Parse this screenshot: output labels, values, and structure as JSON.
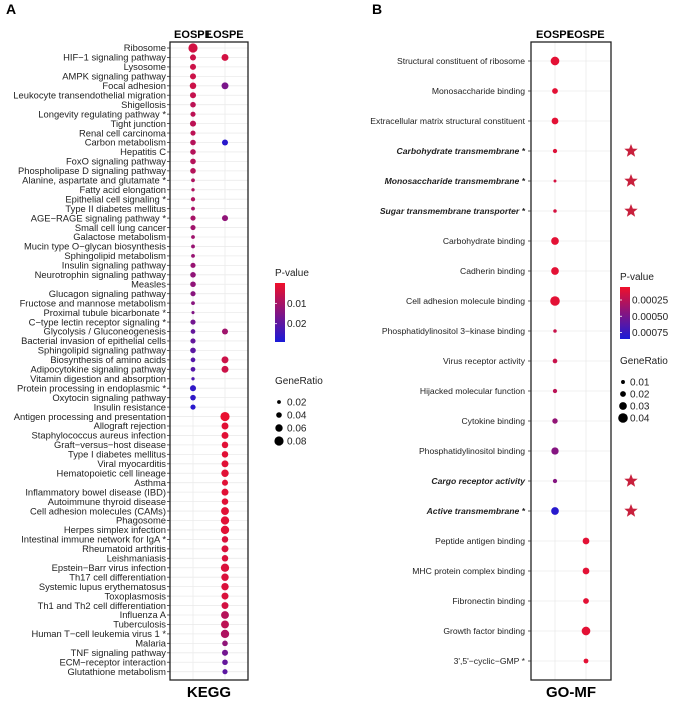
{
  "panels": [
    {
      "letter": "A",
      "title": "KEGG"
    },
    {
      "letter": "B",
      "title": "GO-MF"
    }
  ],
  "chart_data": [
    {
      "type": "scatter",
      "title": "KEGG",
      "panel": "A",
      "columns": [
        "EOSPE",
        "LOSPE"
      ],
      "color_legend": {
        "title": "P-value",
        "ticks": [
          "0.01",
          "0.02"
        ],
        "tick_values": [
          0.01,
          0.02
        ],
        "range": [
          0.0,
          0.029
        ],
        "low_color": "#f0102a",
        "high_color": "#1a1ad8"
      },
      "size_legend": {
        "title": "GeneRatio",
        "ticks": [
          "0.02",
          "0.04",
          "0.06",
          "0.08"
        ],
        "tick_values": [
          0.02,
          0.04,
          0.06,
          0.08
        ]
      },
      "grid": true,
      "legend": "right",
      "terms": [
        {
          "term": "Ribosome",
          "EOSPE": [
            0.004,
            0.08
          ],
          "LOSPE": null
        },
        {
          "term": "HIF−1 signaling pathway",
          "EOSPE": [
            0.005,
            0.045
          ],
          "LOSPE": [
            0.004,
            0.055
          ]
        },
        {
          "term": "Lysosome",
          "EOSPE": [
            0.005,
            0.045
          ],
          "LOSPE": null
        },
        {
          "term": "AMPK signaling pathway",
          "EOSPE": [
            0.005,
            0.045
          ],
          "LOSPE": null
        },
        {
          "term": "Focal adhesion",
          "EOSPE": [
            0.005,
            0.05
          ],
          "LOSPE": [
            0.016,
            0.055
          ]
        },
        {
          "term": "Leukocyte transendothelial migration",
          "EOSPE": [
            0.006,
            0.045
          ],
          "LOSPE": null
        },
        {
          "term": "Shigellosis",
          "EOSPE": [
            0.007,
            0.04
          ],
          "LOSPE": null
        },
        {
          "term": "Longevity regulating pathway *",
          "EOSPE": [
            0.007,
            0.035
          ],
          "LOSPE": null
        },
        {
          "term": "Tight junction",
          "EOSPE": [
            0.007,
            0.045
          ],
          "LOSPE": null
        },
        {
          "term": "Renal cell carcinoma",
          "EOSPE": [
            0.007,
            0.035
          ],
          "LOSPE": null
        },
        {
          "term": "Carbon metabolism",
          "EOSPE": [
            0.008,
            0.04
          ],
          "LOSPE": [
            0.027,
            0.045
          ]
        },
        {
          "term": "Hepatitis C",
          "EOSPE": [
            0.008,
            0.04
          ],
          "LOSPE": null
        },
        {
          "term": "FoxO signaling pathway",
          "EOSPE": [
            0.008,
            0.04
          ],
          "LOSPE": null
        },
        {
          "term": "Phospholipase D signaling pathway",
          "EOSPE": [
            0.008,
            0.04
          ],
          "LOSPE": null
        },
        {
          "term": "Alanine, aspartate and glutamate *",
          "EOSPE": [
            0.009,
            0.02
          ],
          "LOSPE": null
        },
        {
          "term": "Fatty acid elongation",
          "EOSPE": [
            0.009,
            0.015
          ],
          "LOSPE": null
        },
        {
          "term": "Epithelial cell signaling *",
          "EOSPE": [
            0.009,
            0.025
          ],
          "LOSPE": null
        },
        {
          "term": "Type II diabetes mellitus",
          "EOSPE": [
            0.01,
            0.02
          ],
          "LOSPE": null
        },
        {
          "term": "AGE−RAGE signaling pathway *",
          "EOSPE": [
            0.01,
            0.035
          ],
          "LOSPE": [
            0.013,
            0.045
          ]
        },
        {
          "term": "Small cell lung cancer",
          "EOSPE": [
            0.011,
            0.035
          ],
          "LOSPE": null
        },
        {
          "term": "Galactose metabolism",
          "EOSPE": [
            0.011,
            0.02
          ],
          "LOSPE": null
        },
        {
          "term": "Mucin type O−glycan biosynthesis",
          "EOSPE": [
            0.012,
            0.02
          ],
          "LOSPE": null
        },
        {
          "term": "Sphingolipid metabolism",
          "EOSPE": [
            0.012,
            0.02
          ],
          "LOSPE": null
        },
        {
          "term": "Insulin signaling pathway",
          "EOSPE": [
            0.012,
            0.035
          ],
          "LOSPE": null
        },
        {
          "term": "Neurotrophin signaling pathway",
          "EOSPE": [
            0.013,
            0.04
          ],
          "LOSPE": null
        },
        {
          "term": "Measles",
          "EOSPE": [
            0.013,
            0.04
          ],
          "LOSPE": null
        },
        {
          "term": "Glucagon signaling pathway",
          "EOSPE": [
            0.014,
            0.035
          ],
          "LOSPE": null
        },
        {
          "term": "Fructose and mannose metabolism",
          "EOSPE": [
            0.014,
            0.02
          ],
          "LOSPE": null
        },
        {
          "term": "Proximal tubule bicarbonate *",
          "EOSPE": [
            0.015,
            0.012
          ],
          "LOSPE": null
        },
        {
          "term": "C−type lectin receptor signaling *",
          "EOSPE": [
            0.017,
            0.035
          ],
          "LOSPE": null
        },
        {
          "term": "Glycolysis / Gluconeogenesis",
          "EOSPE": [
            0.019,
            0.03
          ],
          "LOSPE": [
            0.011,
            0.045
          ]
        },
        {
          "term": "Bacterial invasion of epithelial cells",
          "EOSPE": [
            0.019,
            0.035
          ],
          "LOSPE": null
        },
        {
          "term": "Sphingolipid signaling pathway",
          "EOSPE": [
            0.02,
            0.04
          ],
          "LOSPE": null
        },
        {
          "term": "Biosynthesis of amino acids",
          "EOSPE": [
            0.021,
            0.03
          ],
          "LOSPE": [
            0.005,
            0.055
          ]
        },
        {
          "term": "Adipocytokine signaling pathway",
          "EOSPE": [
            0.021,
            0.03
          ],
          "LOSPE": [
            0.005,
            0.055
          ]
        },
        {
          "term": "Vitamin digestion and absorption",
          "EOSPE": [
            0.022,
            0.015
          ],
          "LOSPE": null
        },
        {
          "term": "Protein processing in endoplasmic *",
          "EOSPE": [
            0.026,
            0.045
          ],
          "LOSPE": null
        },
        {
          "term": "Oxytocin signaling pathway",
          "EOSPE": [
            0.026,
            0.04
          ],
          "LOSPE": null
        },
        {
          "term": "Insulin resistance",
          "EOSPE": [
            0.027,
            0.035
          ],
          "LOSPE": null
        },
        {
          "term": "Antigen processing and presentation",
          "EOSPE": null,
          "LOSPE": [
            0.001,
            0.08
          ]
        },
        {
          "term": "Allograft rejection",
          "EOSPE": null,
          "LOSPE": [
            0.002,
            0.055
          ]
        },
        {
          "term": "Staphylococcus aureus infection",
          "EOSPE": null,
          "LOSPE": [
            0.002,
            0.055
          ]
        },
        {
          "term": "Graft−versus−host disease",
          "EOSPE": null,
          "LOSPE": [
            0.002,
            0.05
          ]
        },
        {
          "term": "Type I diabetes mellitus",
          "EOSPE": null,
          "LOSPE": [
            0.002,
            0.05
          ]
        },
        {
          "term": "Viral myocarditis",
          "EOSPE": null,
          "LOSPE": [
            0.002,
            0.055
          ]
        },
        {
          "term": "Hematopoietic cell lineage",
          "EOSPE": null,
          "LOSPE": [
            0.002,
            0.06
          ]
        },
        {
          "term": "Asthma",
          "EOSPE": null,
          "LOSPE": [
            0.002,
            0.045
          ]
        },
        {
          "term": "Inflammatory bowel disease (IBD)",
          "EOSPE": null,
          "LOSPE": [
            0.002,
            0.055
          ]
        },
        {
          "term": "Autoimmune thyroid disease",
          "EOSPE": null,
          "LOSPE": [
            0.002,
            0.05
          ]
        },
        {
          "term": "Cell adhesion molecules (CAMs)",
          "EOSPE": null,
          "LOSPE": [
            0.002,
            0.065
          ]
        },
        {
          "term": "Phagosome",
          "EOSPE": null,
          "LOSPE": [
            0.002,
            0.07
          ]
        },
        {
          "term": "Herpes simplex infection",
          "EOSPE": null,
          "LOSPE": [
            0.002,
            0.07
          ]
        },
        {
          "term": "Intestinal immune network for IgA *",
          "EOSPE": null,
          "LOSPE": [
            0.003,
            0.05
          ]
        },
        {
          "term": "Rheumatoid arthritis",
          "EOSPE": null,
          "LOSPE": [
            0.003,
            0.055
          ]
        },
        {
          "term": "Leishmaniasis",
          "EOSPE": null,
          "LOSPE": [
            0.003,
            0.05
          ]
        },
        {
          "term": "Epstein−Barr virus infection",
          "EOSPE": null,
          "LOSPE": [
            0.003,
            0.07
          ]
        },
        {
          "term": "Th17 cell differentiation",
          "EOSPE": null,
          "LOSPE": [
            0.003,
            0.06
          ]
        },
        {
          "term": "Systemic lupus erythematosus",
          "EOSPE": null,
          "LOSPE": [
            0.003,
            0.06
          ]
        },
        {
          "term": "Toxoplasmosis",
          "EOSPE": null,
          "LOSPE": [
            0.003,
            0.055
          ]
        },
        {
          "term": "Th1 and Th2 cell differentiation",
          "EOSPE": null,
          "LOSPE": [
            0.004,
            0.055
          ]
        },
        {
          "term": "Influenza A",
          "EOSPE": null,
          "LOSPE": [
            0.008,
            0.065
          ]
        },
        {
          "term": "Tuberculosis",
          "EOSPE": null,
          "LOSPE": [
            0.007,
            0.065
          ]
        },
        {
          "term": "Human T−cell leukemia virus 1 *",
          "EOSPE": null,
          "LOSPE": [
            0.009,
            0.07
          ]
        },
        {
          "term": "Malaria",
          "EOSPE": null,
          "LOSPE": [
            0.013,
            0.04
          ]
        },
        {
          "term": "TNF signaling pathway",
          "EOSPE": null,
          "LOSPE": [
            0.017,
            0.045
          ]
        },
        {
          "term": "ECM−receptor interaction",
          "EOSPE": null,
          "LOSPE": [
            0.019,
            0.04
          ]
        },
        {
          "term": "Glutathione metabolism",
          "EOSPE": null,
          "LOSPE": [
            0.02,
            0.035
          ]
        }
      ]
    },
    {
      "type": "scatter",
      "title": "GO-MF",
      "panel": "B",
      "columns": [
        "EOSPE",
        "LOSPE"
      ],
      "color_legend": {
        "title": "P-value",
        "ticks": [
          "0.00025",
          "0.00050",
          "0.00075"
        ],
        "tick_values": [
          0.00025,
          0.0005,
          0.00075
        ],
        "range": [
          5e-05,
          0.00085
        ],
        "low_color": "#f0102a",
        "high_color": "#1a1ad8"
      },
      "size_legend": {
        "title": "GeneRatio",
        "ticks": [
          "0.01",
          "0.02",
          "0.03",
          "0.04"
        ],
        "tick_values": [
          0.01,
          0.02,
          0.03,
          0.04
        ]
      },
      "grid": true,
      "legend": "right",
      "marker_color": "#c8203c",
      "terms": [
        {
          "term": "Structural constituent of ribosome",
          "EOSPE": [
            0.0001,
            0.035
          ],
          "LOSPE": null,
          "highlight": false,
          "star": false
        },
        {
          "term": "Monosaccharide binding",
          "EOSPE": [
            0.0001,
            0.02
          ],
          "LOSPE": null,
          "highlight": false,
          "star": false
        },
        {
          "term": "Extracellular matrix structural constituent",
          "EOSPE": [
            0.0001,
            0.025
          ],
          "LOSPE": null,
          "highlight": false,
          "star": false
        },
        {
          "term": "Carbohydrate transmembrane *",
          "EOSPE": [
            0.00012,
            0.012
          ],
          "LOSPE": null,
          "highlight": true,
          "star": true
        },
        {
          "term": "Monosaccharide transmembrane  *",
          "EOSPE": [
            0.00015,
            0.005
          ],
          "LOSPE": null,
          "highlight": true,
          "star": true
        },
        {
          "term": "Sugar transmembrane transporter *",
          "EOSPE": [
            0.00015,
            0.008
          ],
          "LOSPE": null,
          "highlight": true,
          "star": true
        },
        {
          "term": "Carbohydrate binding",
          "EOSPE": [
            0.0001,
            0.03
          ],
          "LOSPE": null,
          "highlight": false,
          "star": false
        },
        {
          "term": "Cadherin binding",
          "EOSPE": [
            0.0001,
            0.03
          ],
          "LOSPE": null,
          "highlight": false,
          "star": false
        },
        {
          "term": "Cell adhesion molecule binding",
          "EOSPE": [
            0.0001,
            0.04
          ],
          "LOSPE": null,
          "highlight": false,
          "star": false
        },
        {
          "term": "Phosphatidylinositol 3−kinase binding",
          "EOSPE": [
            0.0002,
            0.008
          ],
          "LOSPE": null,
          "highlight": false,
          "star": false
        },
        {
          "term": "Virus receptor activity",
          "EOSPE": [
            0.0002,
            0.014
          ],
          "LOSPE": null,
          "highlight": false,
          "star": false
        },
        {
          "term": "Hijacked molecular function",
          "EOSPE": [
            0.00025,
            0.012
          ],
          "LOSPE": null,
          "highlight": false,
          "star": false
        },
        {
          "term": "Cytokine binding",
          "EOSPE": [
            0.0004,
            0.018
          ],
          "LOSPE": null,
          "highlight": false,
          "star": false
        },
        {
          "term": "Phosphatidylinositol binding",
          "EOSPE": [
            0.00045,
            0.028
          ],
          "LOSPE": null,
          "highlight": false,
          "star": false
        },
        {
          "term": "Cargo receptor activity",
          "EOSPE": [
            0.00045,
            0.012
          ],
          "LOSPE": null,
          "highlight": true,
          "star": true
        },
        {
          "term": "Active transmembrane *",
          "EOSPE": [
            0.0008,
            0.03
          ],
          "LOSPE": null,
          "highlight": true,
          "star": true
        },
        {
          "term": "Peptide antigen binding",
          "EOSPE": null,
          "LOSPE": [
            0.0001,
            0.025
          ],
          "highlight": false,
          "star": false
        },
        {
          "term": "MHC protein complex binding",
          "EOSPE": null,
          "LOSPE": [
            0.0001,
            0.025
          ],
          "highlight": false,
          "star": false
        },
        {
          "term": "Fibronectin binding",
          "EOSPE": null,
          "LOSPE": [
            0.0001,
            0.02
          ],
          "highlight": false,
          "star": false
        },
        {
          "term": "Growth factor binding",
          "EOSPE": null,
          "LOSPE": [
            0.0001,
            0.035
          ],
          "highlight": false,
          "star": false
        },
        {
          "term": "3',5'−cyclic−GMP *",
          "EOSPE": null,
          "LOSPE": [
            0.0001,
            0.015
          ],
          "highlight": false,
          "star": false
        }
      ]
    }
  ]
}
